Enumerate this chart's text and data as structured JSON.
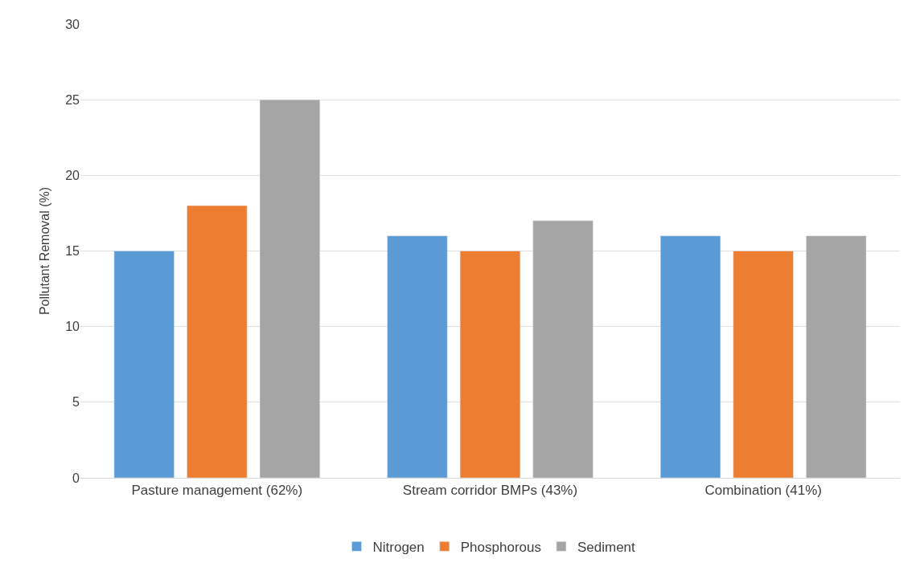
{
  "chart_data": {
    "type": "bar",
    "ylabel": "Pollutant Removal (%)",
    "categories": [
      "Pasture management (62%)",
      "Stream corridor BMPs (43%)",
      "Combination (41%)"
    ],
    "series": [
      {
        "name": "Nitrogen",
        "color": "#5b9bd5",
        "values": [
          15,
          16,
          16
        ]
      },
      {
        "name": "Phosphorous",
        "color": "#ed7d31",
        "values": [
          18,
          15,
          15
        ]
      },
      {
        "name": "Sediment",
        "color": "#a5a5a5",
        "values": [
          25,
          17,
          16
        ]
      }
    ],
    "ylim": [
      0,
      30
    ],
    "yticks": [
      0,
      5,
      10,
      15,
      20,
      25,
      30
    ],
    "grid": "y",
    "legend": "bottom"
  }
}
